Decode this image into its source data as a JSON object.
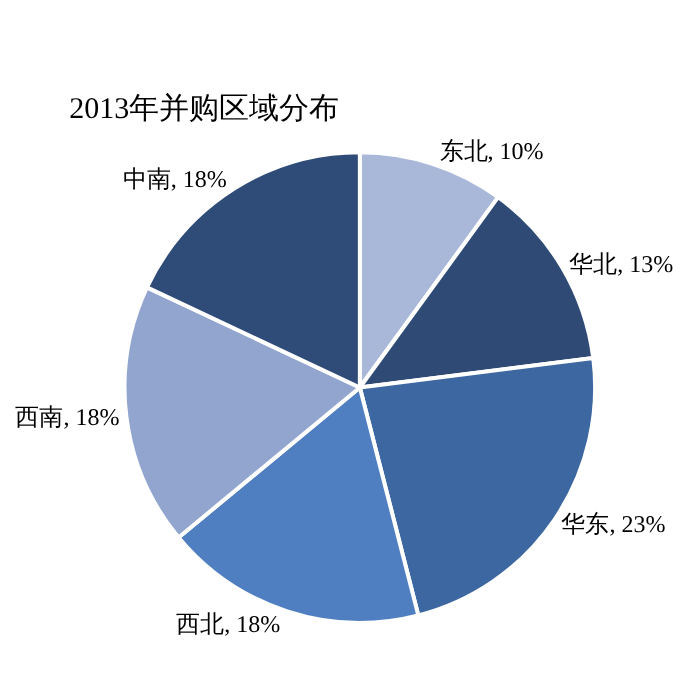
{
  "chart_data": {
    "type": "pie",
    "title": "2013年并购区域分布",
    "categories": [
      "东北",
      "华北",
      "华东",
      "西北",
      "西南",
      "中南"
    ],
    "values": [
      10,
      13,
      23,
      18,
      18,
      18
    ],
    "value_labels": [
      "10%",
      "13%",
      "23%",
      "18%",
      "18%",
      "18%"
    ],
    "colors": [
      "#a9b8d9",
      "#2e4a75",
      "#3c67a0",
      "#4f7fc0",
      "#91a5cf",
      "#2f4c78"
    ],
    "legend": false
  }
}
